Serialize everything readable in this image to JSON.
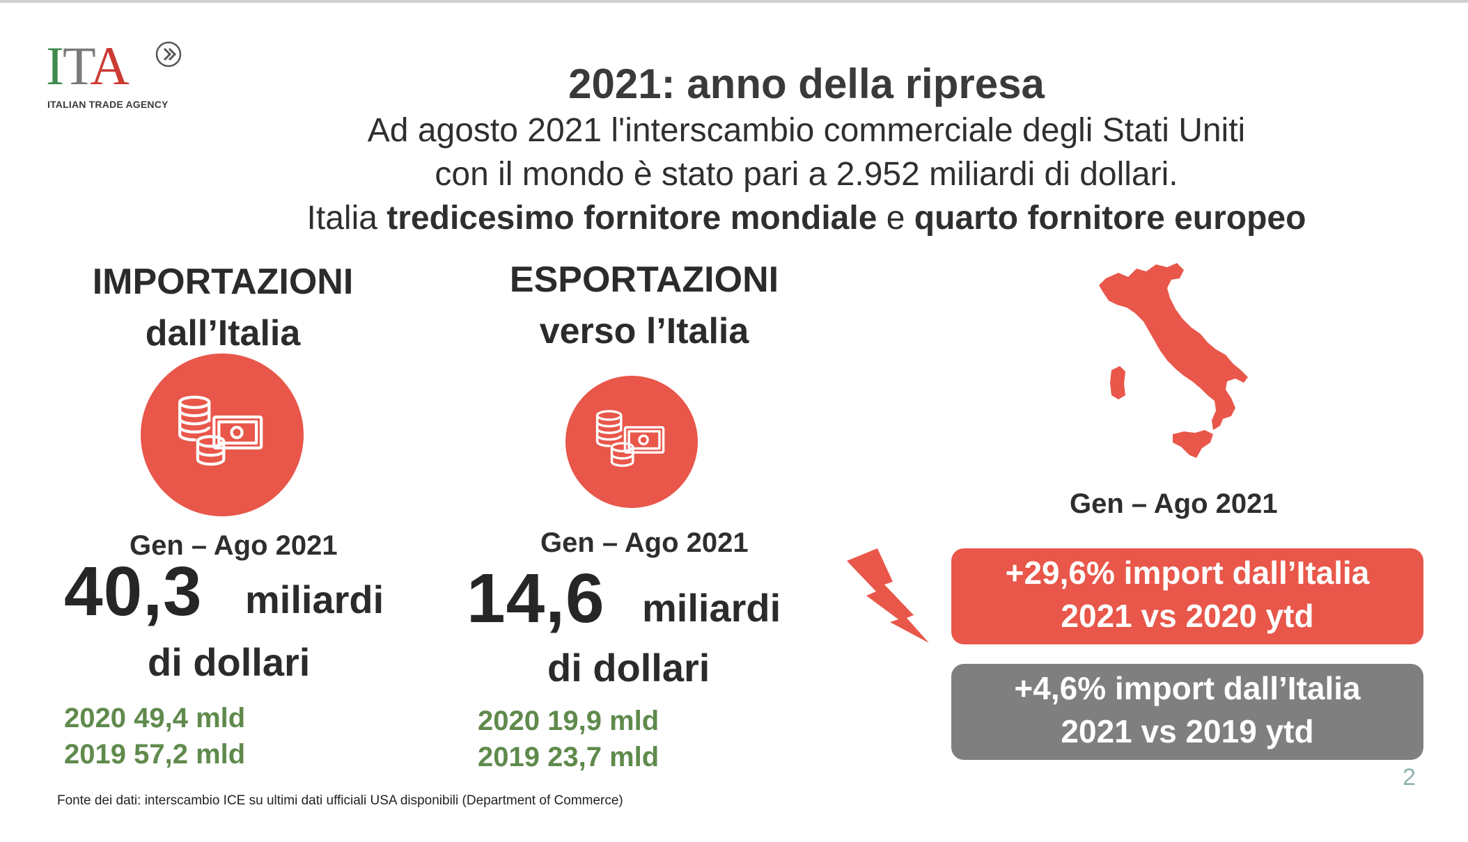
{
  "logo": {
    "mark_i": "I",
    "mark_t": "T",
    "mark_a": "A",
    "tagline": "ITALIAN TRADE AGENCY"
  },
  "header": {
    "title": "2021: anno della ripresa",
    "line1": "Ad agosto 2021 l'interscambio commerciale degli Stati Uniti",
    "line2": "con il mondo è stato pari a 2.952 miliardi di dollari.",
    "line3_prefix": "Italia ",
    "line3_bold1": "tredicesimo fornitore mondiale",
    "line3_mid": " e ",
    "line3_bold2": "quarto fornitore europeo"
  },
  "imports": {
    "heading1": "IMPORTAZIONI",
    "heading2": "dall’Italia",
    "icon": "coins-cash-icon",
    "period": "Gen – Ago 2021",
    "value": "40,3",
    "unit1": "miliardi",
    "unit2": "di dollari",
    "hist": [
      "2020 49,4 mld",
      "2019 57,2 mld"
    ]
  },
  "exports": {
    "heading1": "ESPORTAZIONI",
    "heading2": "verso l’Italia",
    "icon": "coins-cash-icon",
    "period": "Gen – Ago 2021",
    "value": "14,6",
    "unit1": "miliardi",
    "unit2": "di dollari",
    "hist": [
      "2020 19,9 mld",
      "2019 23,7 mld"
    ]
  },
  "map": {
    "icon": "italy-map-icon",
    "period": "Gen – Ago 2021"
  },
  "badges": {
    "red_line1": "+29,6% import  dall’Italia",
    "red_line2": "2021 vs 2020 ytd",
    "grey_line1": "+4,6% import  dall’Italia",
    "grey_line2": "2021 vs 2019 ytd"
  },
  "footer": {
    "source": "Fonte dei dati: interscambio ICE su ultimi dati ufficiali USA disponibili (Department of Commerce)",
    "page": "2"
  },
  "colors": {
    "accent_red": "#e8574a",
    "grey": "#7f7f7f",
    "green": "#5f8a4c"
  }
}
